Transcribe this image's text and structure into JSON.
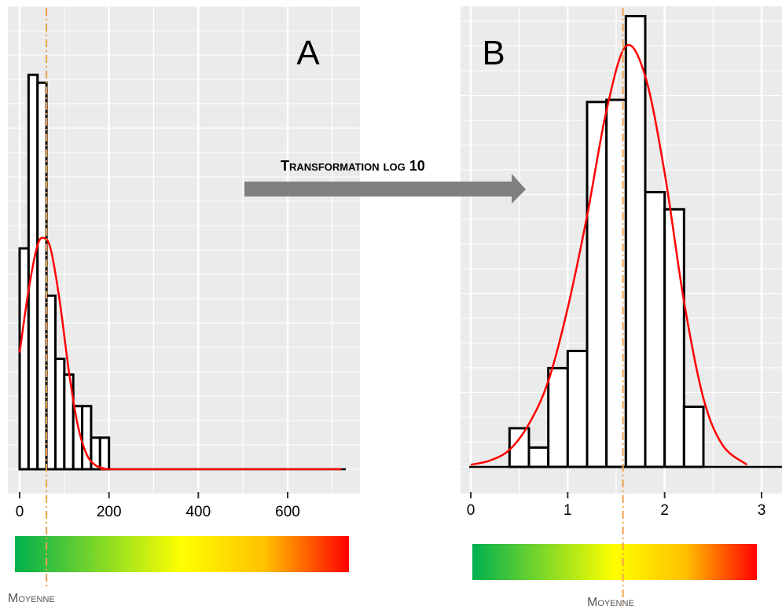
{
  "arrow_label": {
    "text": "Transformation log 10"
  },
  "mean_label": "Moyenne",
  "colors": {
    "panel_background": "#ebebeb",
    "grid": "#ffffff",
    "density_curve": "#ff0000",
    "mean_line": "#f0a050",
    "arrow": "#808080",
    "gradient": [
      "#00b050",
      "#ffff00",
      "#ffc000",
      "#ff0000"
    ]
  },
  "chart_data": [
    {
      "type": "bar",
      "panel_label": "A",
      "xlim": [
        -5,
        730
      ],
      "ylim": [
        0,
        56
      ],
      "x_ticks": [
        0,
        200,
        400,
        600
      ],
      "x_tick_labels": [
        "0",
        "200",
        "400",
        "600"
      ],
      "grid": true,
      "histogram": {
        "bin_edges": [
          0,
          20,
          40,
          60,
          80,
          100,
          120,
          140,
          160,
          180,
          200
        ],
        "counts": [
          28,
          50,
          49,
          22,
          14,
          12,
          8,
          8,
          4,
          4,
          0
        ],
        "fill": "#ffffff",
        "stroke": "#000000"
      },
      "density_curve": {
        "x": [
          0,
          20,
          40,
          55,
          70,
          90,
          110,
          130,
          150,
          170,
          190,
          200,
          400,
          720
        ],
        "y": [
          14.8,
          22.7,
          28.4,
          29.3,
          27.8,
          21.2,
          12.5,
          5.6,
          1.9,
          0.5,
          0.1,
          0,
          0,
          0
        ]
      },
      "mean": 60,
      "color_scale": {
        "min": 0,
        "max": 720
      }
    },
    {
      "type": "bar",
      "panel_label": "B",
      "xlim": [
        -0.02,
        3.2
      ],
      "ylim": [
        0,
        20.8
      ],
      "x_ticks": [
        0,
        1,
        2,
        3
      ],
      "x_tick_labels": [
        "0",
        "1",
        "2",
        "3"
      ],
      "grid": true,
      "histogram": {
        "bin_edges": [
          0.4,
          0.6,
          0.8,
          1.0,
          1.2,
          1.4,
          1.6,
          1.8,
          2.0,
          2.2,
          2.4
        ],
        "counts": [
          1.8,
          0.9,
          4.6,
          5.4,
          17.0,
          17.1,
          21.0,
          12.8,
          12.0,
          2.8,
          0
        ],
        "fill": "#ffffff",
        "stroke": "#000000"
      },
      "density_curve": {
        "x": [
          0,
          0.2,
          0.4,
          0.6,
          0.8,
          1.0,
          1.2,
          1.4,
          1.6,
          1.8,
          2.0,
          2.2,
          2.4,
          2.6,
          2.85
        ],
        "y": [
          0.1,
          0.3,
          0.8,
          2.0,
          4.0,
          7.4,
          11.7,
          16.6,
          19.6,
          18.2,
          13.7,
          7.7,
          3.2,
          1.0,
          0.1
        ]
      },
      "mean": 1.57,
      "color_scale": {
        "min": 0,
        "max": 3
      }
    }
  ]
}
